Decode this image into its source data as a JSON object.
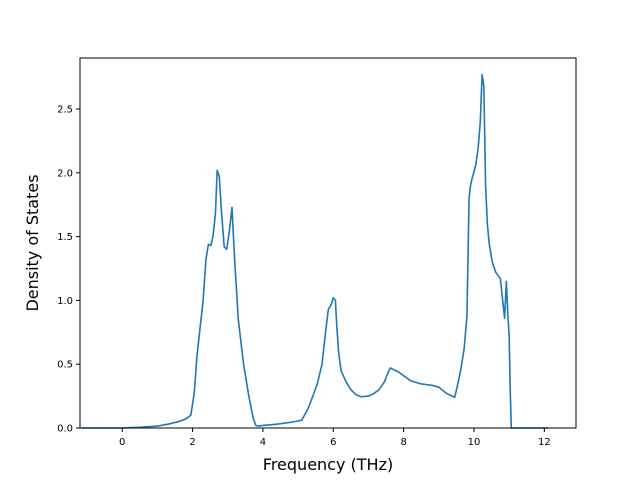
{
  "chart_data": {
    "type": "line",
    "title": "",
    "xlabel": "Frequency (THz)",
    "ylabel": "Density of States",
    "xlim": [
      -1.2,
      12.9
    ],
    "ylim": [
      0,
      2.9
    ],
    "xticks": [
      0,
      2,
      4,
      6,
      8,
      10,
      12
    ],
    "xtick_labels": [
      "0",
      "2",
      "4",
      "6",
      "8",
      "10",
      "12"
    ],
    "yticks": [
      0.0,
      0.5,
      1.0,
      1.5,
      2.0,
      2.5
    ],
    "ytick_labels": [
      "0.0",
      "0.5",
      "1.0",
      "1.5",
      "2.0",
      "2.5"
    ],
    "grid": false,
    "legend": "none",
    "series": [
      {
        "color": "#1f77b4",
        "x": [
          -1.15,
          0.0,
          0.5,
          1.0,
          1.3,
          1.6,
          1.8,
          1.95,
          2.05,
          2.12,
          2.2,
          2.3,
          2.38,
          2.45,
          2.52,
          2.58,
          2.65,
          2.7,
          2.76,
          2.82,
          2.9,
          2.97,
          3.05,
          3.12,
          3.2,
          3.3,
          3.45,
          3.6,
          3.72,
          3.8,
          3.87,
          4.0,
          4.4,
          4.8,
          5.1,
          5.28,
          5.42,
          5.55,
          5.68,
          5.78,
          5.86,
          5.93,
          6.0,
          6.06,
          6.1,
          6.15,
          6.22,
          6.35,
          6.5,
          6.65,
          6.8,
          7.0,
          7.15,
          7.3,
          7.45,
          7.55,
          7.62,
          7.7,
          7.85,
          8.0,
          8.2,
          8.5,
          8.8,
          9.0,
          9.2,
          9.45,
          9.52,
          9.62,
          9.72,
          9.8,
          9.86,
          9.9,
          9.95,
          10.05,
          10.12,
          10.18,
          10.23,
          10.28,
          10.33,
          10.38,
          10.43,
          10.52,
          10.62,
          10.75,
          10.87,
          10.92,
          10.96,
          11.0,
          11.03,
          11.06,
          11.1,
          11.14,
          12.1
        ],
        "y": [
          0.0,
          0.0,
          0.005,
          0.015,
          0.03,
          0.05,
          0.07,
          0.1,
          0.28,
          0.55,
          0.75,
          1.0,
          1.32,
          1.44,
          1.43,
          1.5,
          1.68,
          2.02,
          1.97,
          1.7,
          1.42,
          1.4,
          1.55,
          1.73,
          1.3,
          0.85,
          0.5,
          0.25,
          0.08,
          0.02,
          0.015,
          0.02,
          0.03,
          0.045,
          0.06,
          0.15,
          0.25,
          0.35,
          0.5,
          0.75,
          0.93,
          0.96,
          1.02,
          1.0,
          0.8,
          0.6,
          0.45,
          0.37,
          0.3,
          0.26,
          0.245,
          0.25,
          0.27,
          0.3,
          0.36,
          0.43,
          0.47,
          0.46,
          0.44,
          0.41,
          0.37,
          0.345,
          0.335,
          0.32,
          0.275,
          0.24,
          0.32,
          0.45,
          0.62,
          0.88,
          1.8,
          1.9,
          1.96,
          2.06,
          2.2,
          2.4,
          2.77,
          2.68,
          1.9,
          1.6,
          1.45,
          1.3,
          1.22,
          1.17,
          0.86,
          1.15,
          0.9,
          0.72,
          0.3,
          0.0,
          0.0,
          0.0,
          0.0
        ]
      }
    ]
  }
}
